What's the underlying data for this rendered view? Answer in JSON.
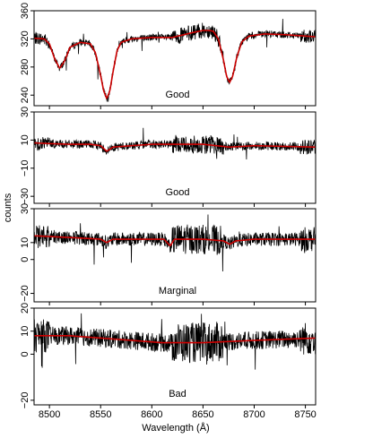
{
  "chart_data": {
    "type": "line",
    "xlabel": "Wavelength (Å)",
    "ylabel": "counts",
    "xlim": [
      8485,
      8760
    ],
    "xticks": [
      8500,
      8550,
      8600,
      8650,
      8700,
      8750
    ],
    "x_tick_labels": [
      "8500",
      "8550",
      "8600",
      "8650",
      "8700",
      "8750"
    ],
    "colors": {
      "data": "#000000",
      "fit": "#cc0000"
    },
    "panels": [
      {
        "label": "Good",
        "ylim": [
          225,
          360
        ],
        "yticks": [
          240,
          280,
          320,
          360
        ],
        "y_tick_labels": [
          "240",
          "280",
          "320",
          "360"
        ],
        "noise": 5,
        "fit": {
          "x": [
            8485,
            8495,
            8500,
            8505,
            8510,
            8515,
            8520,
            8530,
            8540,
            8545,
            8550,
            8553,
            8556,
            8559,
            8562,
            8566,
            8570,
            8580,
            8600,
            8620,
            8640,
            8650,
            8655,
            8660,
            8665,
            8670,
            8673,
            8676,
            8679,
            8683,
            8688,
            8695,
            8710,
            8730,
            8750,
            8760
          ],
          "y": [
            321,
            320,
            313,
            292,
            278,
            289,
            308,
            315,
            313,
            300,
            268,
            246,
            235,
            246,
            272,
            303,
            315,
            320,
            322,
            322,
            329,
            332,
            332,
            331,
            320,
            290,
            267,
            258,
            267,
            294,
            316,
            324,
            327,
            326,
            324,
            323
          ]
        }
      },
      {
        "label": "Good",
        "ylim": [
          -35,
          30
        ],
        "yticks": [
          -30,
          -10,
          10,
          30
        ],
        "y_tick_labels": [
          "−30",
          "−10",
          "10",
          "30"
        ],
        "noise": 3,
        "fit": {
          "x": [
            8485,
            8500,
            8520,
            8540,
            8550,
            8556,
            8562,
            8580,
            8600,
            8650,
            8676,
            8700,
            8760
          ],
          "y": [
            8,
            7.5,
            7,
            7,
            6,
            2,
            5,
            6,
            7,
            7,
            5,
            6,
            5
          ]
        }
      },
      {
        "label": "Marginal",
        "ylim": [
          -25,
          30
        ],
        "yticks": [
          -20,
          0,
          10,
          30
        ],
        "y_tick_labels": [
          "−20",
          "0",
          "10",
          "30"
        ],
        "noise": 4,
        "fit": {
          "x": [
            8485,
            8520,
            8550,
            8556,
            8562,
            8580,
            8600,
            8612,
            8618,
            8622,
            8650,
            8670,
            8676,
            8682,
            8700,
            8760
          ],
          "y": [
            14,
            13,
            12,
            10,
            12,
            12,
            12,
            12,
            8,
            12,
            12,
            11,
            9,
            11,
            12,
            12
          ]
        }
      },
      {
        "label": "Bad",
        "ylim": [
          -22,
          20
        ],
        "yticks": [
          -20,
          0,
          10,
          20
        ],
        "y_tick_labels": [
          "−20",
          "0",
          "10",
          "20"
        ],
        "noise": 4,
        "fit": {
          "x": [
            8485,
            8520,
            8550,
            8580,
            8610,
            8650,
            8700,
            8760
          ],
          "y": [
            8,
            8,
            7,
            6,
            5,
            5,
            6,
            7
          ]
        }
      }
    ]
  }
}
